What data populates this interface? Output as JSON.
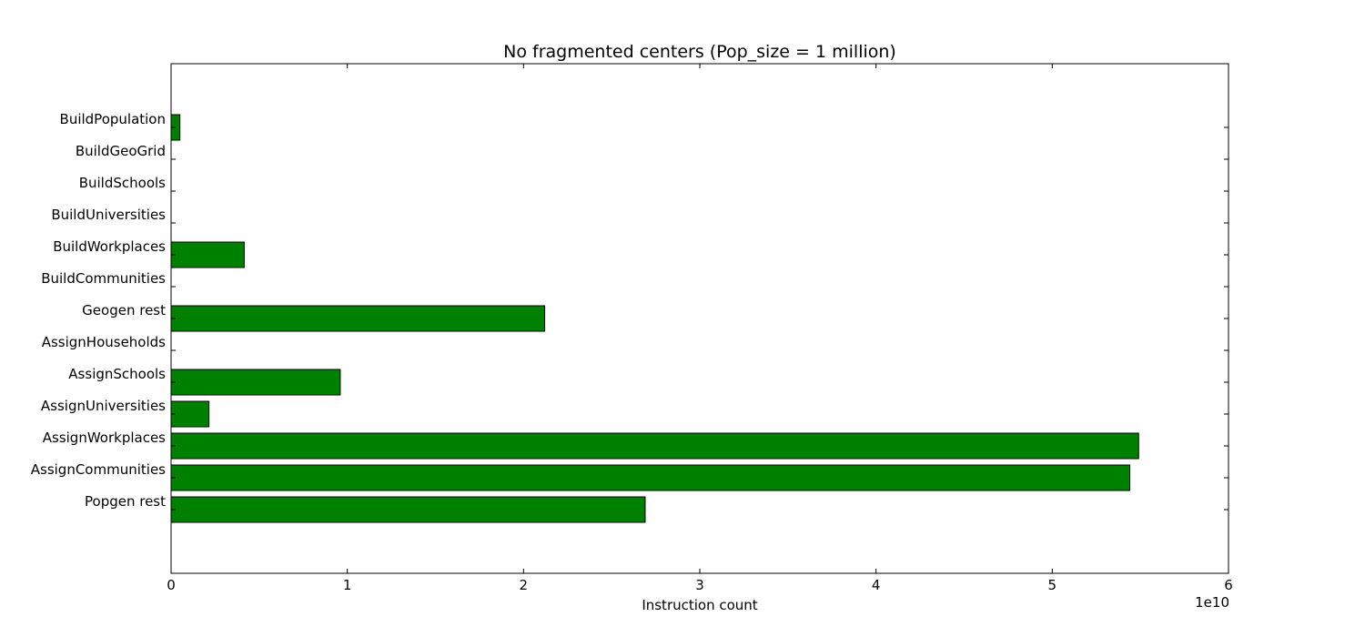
{
  "chart_data": {
    "type": "bar",
    "orientation": "horizontal",
    "title": "No fragmented centers (Pop_size = 1 million)",
    "xlabel": "Instruction count",
    "ylabel": "",
    "x_offset_label": "1e10",
    "xlim": [
      0,
      6
    ],
    "x_ticks": [
      0,
      1,
      2,
      3,
      4,
      5,
      6
    ],
    "x_tick_labels": [
      "0",
      "1",
      "2",
      "3",
      "4",
      "5",
      "6"
    ],
    "categories": [
      "BuildPopulation",
      "BuildGeoGrid",
      "BuildSchools",
      "BuildUniversities",
      "BuildWorkplaces",
      "BuildCommunities",
      "Geogen rest",
      "AssignHouseholds",
      "AssignSchools",
      "AssignUniversities",
      "AssignWorkplaces",
      "AssignCommunities",
      "Popgen rest"
    ],
    "values": [
      0.05,
      0.0,
      0.0,
      0.0,
      0.415,
      0.0,
      2.12,
      0.0,
      0.96,
      0.215,
      5.49,
      5.44,
      2.69
    ],
    "bar_color": "#008000",
    "bar_edge_color": "#000000",
    "grid": false
  }
}
